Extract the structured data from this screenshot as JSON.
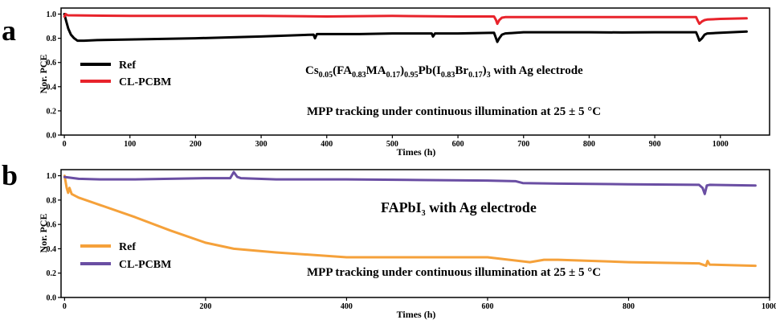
{
  "chart_data": [
    {
      "type": "line",
      "panel_label": "a",
      "xlabel": "Times (h)",
      "ylabel": "Nor. PCE",
      "xlim": [
        -5,
        1075
      ],
      "ylim": [
        0,
        1.05
      ],
      "x_ticks": [
        0,
        100,
        200,
        300,
        400,
        500,
        600,
        700,
        800,
        900,
        1000
      ],
      "y_ticks": [
        "0.0",
        "0.2",
        "0.4",
        "0.6",
        "0.8",
        "1.0"
      ],
      "legend_position": "left",
      "annotations": [
        {
          "id": "composition",
          "parts": [
            "Cs",
            "0.05",
            "(FA",
            "0.83",
            "MA",
            "0.17",
            ")",
            "0.95",
            "Pb(I",
            "0.83",
            "Br",
            "0.17",
            ")",
            "3",
            " with Ag electrode"
          ]
        },
        {
          "id": "condition",
          "text": "MPP tracking under continuous illumination at 25 ± 5 °C"
        }
      ],
      "series": [
        {
          "name": "Ref",
          "color": "#000000",
          "x": [
            0,
            3,
            6,
            10,
            15,
            20,
            30,
            50,
            100,
            150,
            200,
            300,
            380,
            382,
            385,
            450,
            500,
            560,
            562,
            565,
            600,
            655,
            658,
            660,
            663,
            667,
            672,
            700,
            800,
            850,
            900,
            963,
            966,
            968,
            972,
            976,
            980,
            1000,
            1040
          ],
          "y": [
            1.0,
            0.94,
            0.88,
            0.83,
            0.8,
            0.78,
            0.78,
            0.785,
            0.79,
            0.795,
            0.8,
            0.815,
            0.83,
            0.8,
            0.835,
            0.835,
            0.84,
            0.84,
            0.815,
            0.84,
            0.84,
            0.845,
            0.8,
            0.77,
            0.8,
            0.83,
            0.84,
            0.85,
            0.85,
            0.848,
            0.85,
            0.85,
            0.81,
            0.78,
            0.8,
            0.83,
            0.84,
            0.845,
            0.855
          ]
        },
        {
          "name": "CL-PCBM",
          "color": "#e8232b",
          "x": [
            0,
            2,
            5,
            100,
            200,
            300,
            400,
            500,
            600,
            655,
            658,
            660,
            663,
            667,
            672,
            700,
            800,
            900,
            963,
            966,
            968,
            972,
            976,
            980,
            1000,
            1040
          ],
          "y": [
            0.98,
            1.0,
            0.99,
            0.985,
            0.985,
            0.985,
            0.98,
            0.985,
            0.98,
            0.98,
            0.95,
            0.92,
            0.95,
            0.97,
            0.975,
            0.975,
            0.975,
            0.975,
            0.975,
            0.94,
            0.92,
            0.94,
            0.95,
            0.955,
            0.96,
            0.965
          ]
        }
      ]
    },
    {
      "type": "line",
      "panel_label": "b",
      "xlabel": "Times (h)",
      "ylabel": "Nor. PCE",
      "xlim": [
        -5,
        1000
      ],
      "ylim": [
        0,
        1.05
      ],
      "x_ticks": [
        0,
        200,
        400,
        600,
        800,
        1000
      ],
      "y_ticks": [
        "0.0",
        "0.2",
        "0.4",
        "0.6",
        "0.8",
        "1.0"
      ],
      "legend_position": "left",
      "annotations": [
        {
          "id": "composition",
          "parts": [
            "FAPbI",
            "3",
            " with Ag electrode"
          ]
        },
        {
          "id": "condition",
          "text": "MPP tracking under continuous illumination at 25 ± 5 °C"
        }
      ],
      "series": [
        {
          "name": "Ref",
          "color": "#f5a13a",
          "x": [
            0,
            3,
            5,
            7,
            10,
            20,
            50,
            100,
            150,
            200,
            240,
            300,
            400,
            500,
            600,
            660,
            680,
            700,
            800,
            900,
            910,
            912,
            915,
            980
          ],
          "y": [
            1.0,
            0.9,
            0.86,
            0.9,
            0.85,
            0.82,
            0.76,
            0.66,
            0.55,
            0.45,
            0.4,
            0.37,
            0.33,
            0.33,
            0.33,
            0.29,
            0.31,
            0.31,
            0.29,
            0.28,
            0.26,
            0.3,
            0.27,
            0.26
          ]
        },
        {
          "name": "CL-PCBM",
          "color": "#6a4ea3",
          "x": [
            0,
            20,
            50,
            100,
            200,
            235,
            240,
            245,
            250,
            300,
            400,
            500,
            600,
            640,
            650,
            700,
            800,
            900,
            905,
            908,
            911,
            915,
            980
          ],
          "y": [
            0.99,
            0.975,
            0.97,
            0.97,
            0.98,
            0.98,
            1.03,
            0.99,
            0.98,
            0.97,
            0.97,
            0.965,
            0.96,
            0.955,
            0.94,
            0.935,
            0.93,
            0.925,
            0.9,
            0.85,
            0.92,
            0.925,
            0.92
          ]
        }
      ]
    }
  ]
}
